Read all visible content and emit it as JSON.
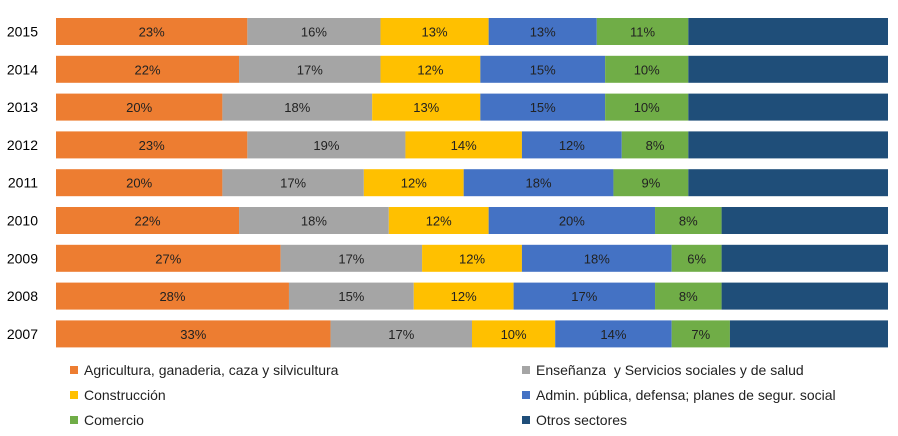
{
  "chart_data": {
    "type": "bar",
    "orientation": "horizontal",
    "stacked": "percent",
    "categories": [
      "2015",
      "2014",
      "2013",
      "2012",
      "2011",
      "2010",
      "2009",
      "2008",
      "2007"
    ],
    "series": [
      {
        "name": "Agricultura, ganaderia, caza y silvicultura",
        "color": "#ED7D31",
        "values": [
          23,
          22,
          20,
          23,
          20,
          22,
          27,
          28,
          33
        ],
        "labels": [
          "23%",
          "22%",
          "20%",
          "23%",
          "20%",
          "22%",
          "27%",
          "28%",
          "33%"
        ]
      },
      {
        "name": "Enseñanza  y Servicios sociales y de salud",
        "color": "#A5A5A5",
        "values": [
          16,
          17,
          18,
          19,
          17,
          18,
          17,
          15,
          17
        ],
        "labels": [
          "16%",
          "17%",
          "18%",
          "19%",
          "17%",
          "18%",
          "17%",
          "15%",
          "17%"
        ]
      },
      {
        "name": "Construcción",
        "color": "#FFC000",
        "values": [
          13,
          12,
          13,
          14,
          12,
          12,
          12,
          12,
          10
        ],
        "labels": [
          "13%",
          "12%",
          "13%",
          "14%",
          "12%",
          "12%",
          "12%",
          "12%",
          "10%"
        ]
      },
      {
        "name": "Admin. pública, defensa; planes de segur. social",
        "color": "#4472C4",
        "values": [
          13,
          15,
          15,
          12,
          18,
          20,
          18,
          17,
          14
        ],
        "labels": [
          "13%",
          "15%",
          "15%",
          "12%",
          "18%",
          "20%",
          "18%",
          "17%",
          "14%"
        ]
      },
      {
        "name": "Comercio",
        "color": "#70AD47",
        "values": [
          11,
          10,
          10,
          8,
          9,
          8,
          6,
          8,
          7
        ],
        "labels": [
          "11%",
          "10%",
          "10%",
          "8%",
          "9%",
          "8%",
          "6%",
          "8%",
          "7%"
        ]
      },
      {
        "name": "Otros sectores",
        "color": "#1F4E79",
        "values": [
          24,
          24,
          24,
          24,
          24,
          20,
          20,
          20,
          19
        ],
        "labels": [
          "",
          "",
          "",
          "",
          "",
          "",
          "",
          "",
          ""
        ]
      }
    ],
    "xlim": [
      0,
      100
    ],
    "grid": false,
    "legend": "bottom",
    "title": "",
    "xlabel": "",
    "ylabel": ""
  }
}
